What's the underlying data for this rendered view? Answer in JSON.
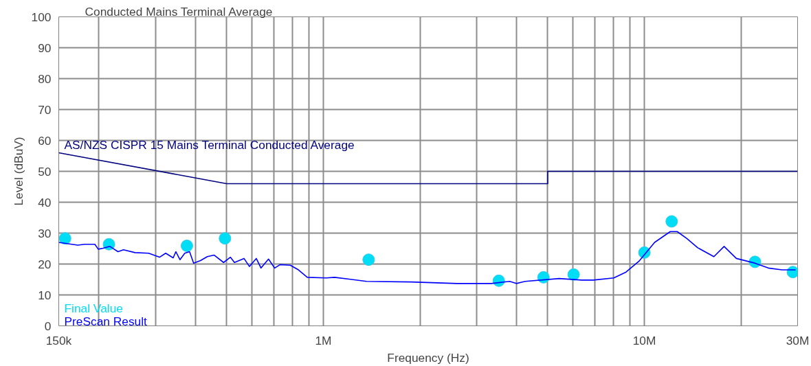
{
  "chart_data": {
    "type": "line",
    "title": "Conducted Mains Terminal Average",
    "xlabel": "Frequency (Hz)",
    "ylabel": "Level (dBuV)",
    "log": "x",
    "xlim": [
      150000,
      30000000
    ],
    "ylim": [
      0,
      100
    ],
    "xticks": [
      {
        "value": 150000,
        "label": "150k"
      },
      {
        "value": 200000,
        "label": null
      },
      {
        "value": 300000,
        "label": null
      },
      {
        "value": 400000,
        "label": null
      },
      {
        "value": 500000,
        "label": null
      },
      {
        "value": 600000,
        "label": null
      },
      {
        "value": 700000,
        "label": null
      },
      {
        "value": 800000,
        "label": null
      },
      {
        "value": 900000,
        "label": null
      },
      {
        "value": 1000000,
        "label": "1M"
      },
      {
        "value": 2000000,
        "label": null
      },
      {
        "value": 3000000,
        "label": null
      },
      {
        "value": 4000000,
        "label": null
      },
      {
        "value": 5000000,
        "label": null
      },
      {
        "value": 6000000,
        "label": null
      },
      {
        "value": 7000000,
        "label": null
      },
      {
        "value": 8000000,
        "label": null
      },
      {
        "value": 9000000,
        "label": null
      },
      {
        "value": 10000000,
        "label": "10M"
      },
      {
        "value": 20000000,
        "label": null
      },
      {
        "value": 30000000,
        "label": "30M"
      }
    ],
    "yticks": [
      0,
      10,
      20,
      30,
      40,
      50,
      60,
      70,
      80,
      90,
      100
    ],
    "grid": true,
    "legend": "bottom left",
    "annotations": [
      {
        "text": "AS/NZS CISPR 15 Mains Terminal Conducted Average",
        "x": 150000,
        "y": 56
      }
    ],
    "series": [
      {
        "color": "#000080",
        "x": [
          150000,
          500000,
          5000000,
          5000000,
          30000000
        ],
        "values": [
          56,
          46,
          46,
          50,
          50
        ]
      },
      {
        "type": "scatter",
        "marker": "circle",
        "name": "Final Value",
        "color": "#00ddf5",
        "x": [
          157000,
          215000,
          376000,
          494000,
          1384000,
          3520000,
          4850000,
          6020000,
          10000000,
          12160000,
          22100000,
          29000000
        ],
        "values": [
          28.3,
          26.4,
          25.9,
          28.3,
          21.4,
          14.6,
          15.7,
          16.6,
          23.7,
          33.8,
          20.7,
          17.4
        ]
      },
      {
        "name": "PreScan Result",
        "color": "#0000ff",
        "x": [
          150000,
          172000,
          180600,
          194300,
          199100,
          206100,
          216400,
          229400,
          238600,
          259200,
          285800,
          309000,
          322900,
          340700,
          347400,
          357700,
          370300,
          383200,
          394600,
          414400,
          435100,
          456700,
          489100,
          513500,
          528800,
          566200,
          588800,
          618400,
          639800,
          675100,
          705400,
          733600,
          789200,
          836900,
          891600,
          1022000,
          1084000,
          1363000,
          1882000,
          2611000,
          3334000,
          3804000,
          3993000,
          4256000,
          5431000,
          6381000,
          6934000,
          8028000,
          8767000,
          9618000,
          10760000,
          12040000,
          12650000,
          13540000,
          14640000,
          16460000,
          17710000,
          19340000,
          22070000,
          24330000,
          26830000,
          29580000
        ],
        "values": [
          27.0,
          26.1,
          26.4,
          26.4,
          24.8,
          25.1,
          25.7,
          24.0,
          24.6,
          23.7,
          23.5,
          22.2,
          23.5,
          22.0,
          24.0,
          21.4,
          23.5,
          24.0,
          20.3,
          21.1,
          22.4,
          22.9,
          20.5,
          22.2,
          20.5,
          21.8,
          19.2,
          21.8,
          18.7,
          21.6,
          18.7,
          19.8,
          19.6,
          18.1,
          15.7,
          15.5,
          15.7,
          14.4,
          14.2,
          13.7,
          13.7,
          14.4,
          13.7,
          14.4,
          15.3,
          14.8,
          14.8,
          15.5,
          17.4,
          20.9,
          27.0,
          30.5,
          30.5,
          28.3,
          25.3,
          22.4,
          25.7,
          21.8,
          20.3,
          18.7,
          18.1,
          18.1
        ]
      }
    ]
  }
}
